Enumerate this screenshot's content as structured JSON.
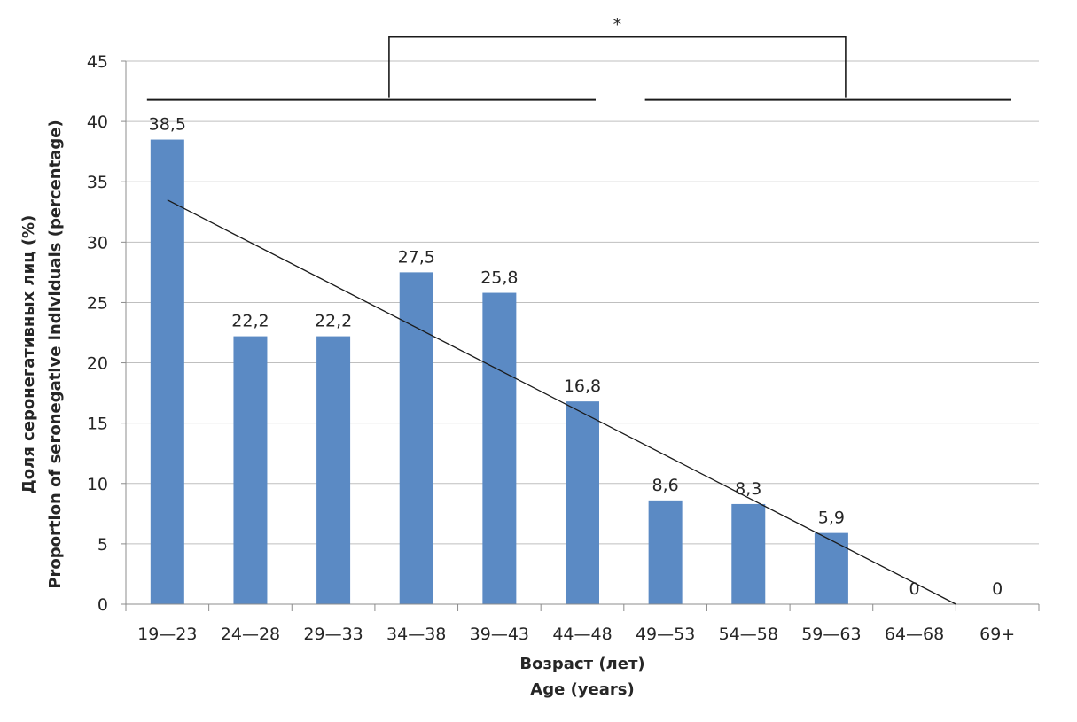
{
  "chart_data": {
    "type": "bar",
    "categories": [
      "19—23",
      "24—28",
      "29—33",
      "34—38",
      "39—43",
      "44—48",
      "49—53",
      "54—58",
      "59—63",
      "64—68",
      "69+"
    ],
    "values": [
      38.5,
      22.2,
      22.2,
      27.5,
      25.8,
      16.8,
      8.6,
      8.3,
      5.9,
      0,
      0
    ],
    "data_labels": [
      "38,5",
      "22,2",
      "22,2",
      "27,5",
      "25,8",
      "16,8",
      "8,6",
      "8,3",
      "5,9",
      "0",
      "0"
    ],
    "ylim": [
      0,
      45
    ],
    "yticks": [
      "0",
      "5",
      "10",
      "15",
      "20",
      "25",
      "30",
      "35",
      "40",
      "45"
    ],
    "ytick_values": [
      0,
      5,
      10,
      15,
      20,
      25,
      30,
      35,
      40,
      45
    ],
    "ylabel_lines": [
      "Доля серонегативных лиц (%)",
      "Proportion of seronegative individuals (percentage)"
    ],
    "xlabel_lines": [
      "Возраст (лет)",
      "Age (years)"
    ],
    "bar_color": "#5b8ac4",
    "grid": true,
    "trendline": {
      "type": "linear",
      "start": {
        "category": 0,
        "y": 33.5
      },
      "end": {
        "category": 9.5,
        "y": 0
      }
    },
    "significance": {
      "marker": "*",
      "groups": [
        {
          "from": 0,
          "to": 5
        },
        {
          "from": 6,
          "to": 10
        }
      ],
      "group_bar_y": 41.8,
      "bracket_y": 47
    }
  }
}
